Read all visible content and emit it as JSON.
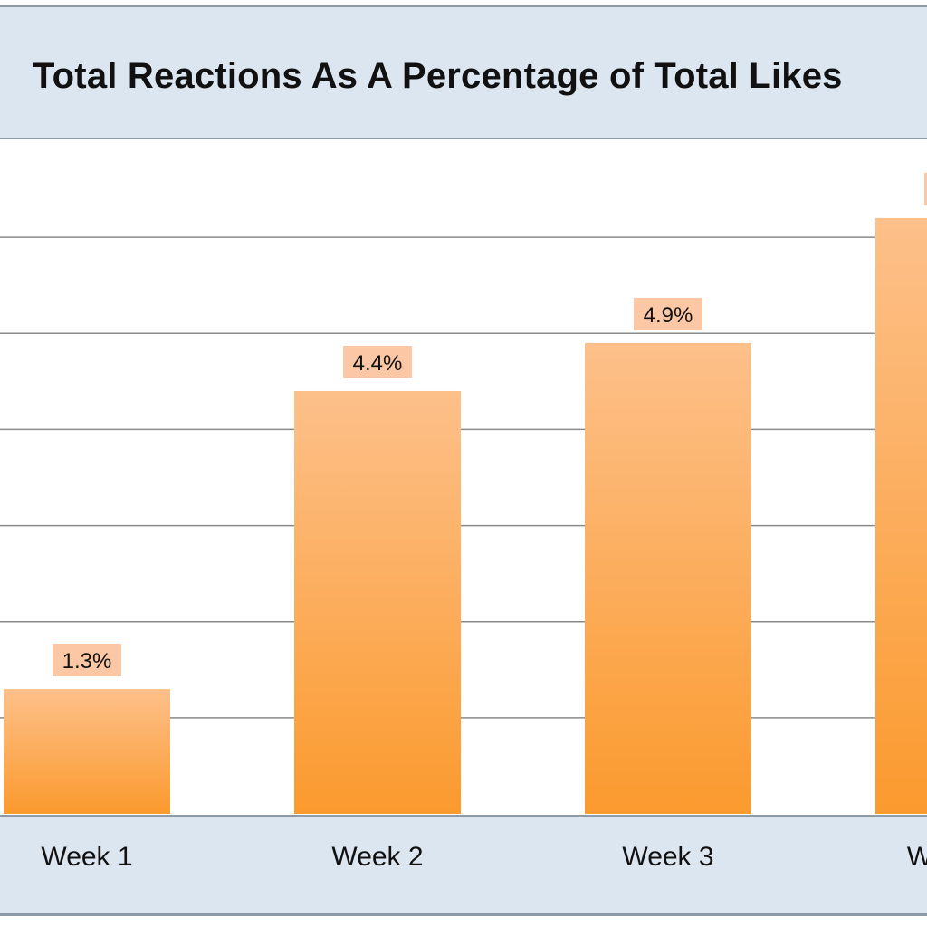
{
  "chart_data": {
    "type": "bar",
    "title": "Total Reactions As A Percentage of Total Likes",
    "categories": [
      "Week 1",
      "Week 2",
      "Week 3",
      "W"
    ],
    "values": [
      1.3,
      4.4,
      4.9,
      6.2
    ],
    "data_labels": [
      "1.3%",
      "4.4%",
      "4.9%",
      ""
    ],
    "ylim": [
      0,
      7
    ],
    "grid": true,
    "bar_color_top": "#fdc08a",
    "bar_color_bottom": "#fb9a2e",
    "label_bg": "#fbc7a4",
    "band_color": "#dce6f1"
  }
}
